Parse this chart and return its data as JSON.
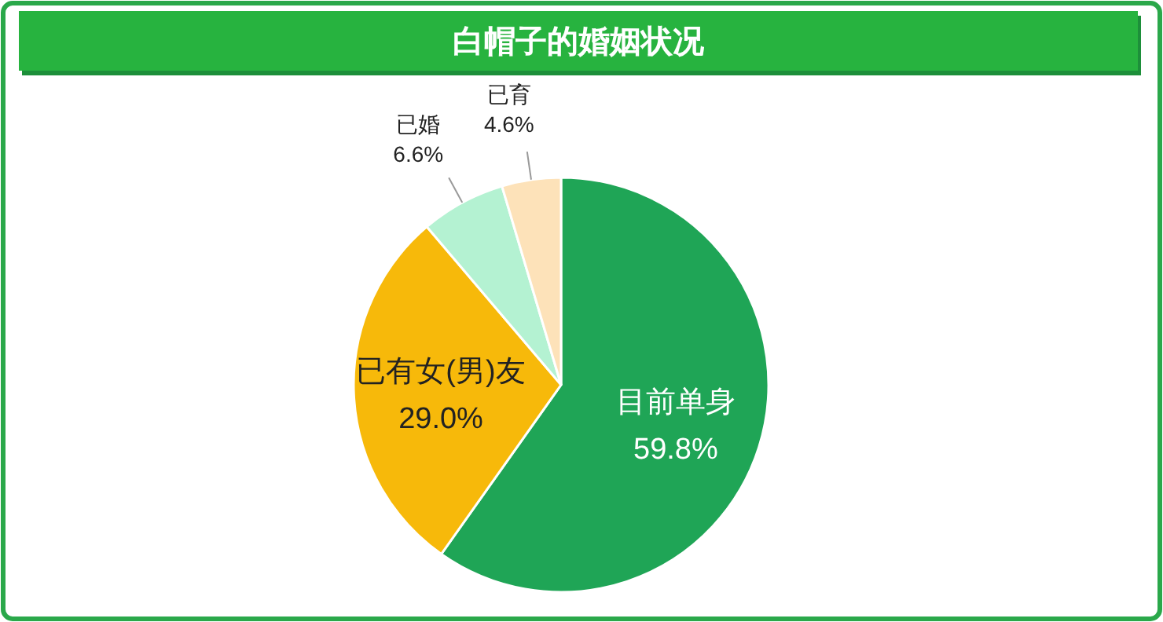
{
  "chart_data": {
    "type": "pie",
    "title": "白帽子的婚姻状况",
    "categories": [
      "目前单身",
      "已有女(男)友",
      "已婚",
      "已育"
    ],
    "values": [
      59.8,
      29.0,
      6.6,
      4.6
    ],
    "value_labels": [
      "59.8%",
      "29.0%",
      "6.6%",
      "4.6%"
    ],
    "colors": [
      "#1fa556",
      "#f7b90a",
      "#b4f2d2",
      "#fde2b9"
    ]
  }
}
